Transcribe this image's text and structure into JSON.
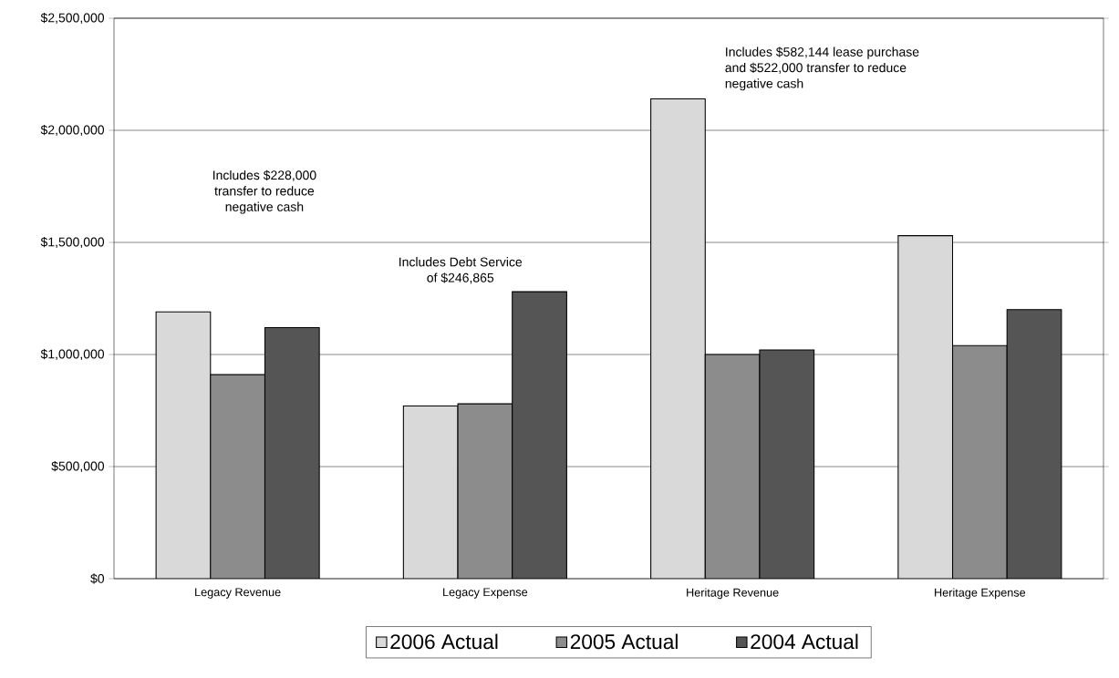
{
  "chart_data": {
    "type": "bar",
    "categories": [
      "Legacy Revenue",
      "Legacy Expense",
      "Heritage Revenue",
      "Heritage Expense"
    ],
    "series": [
      {
        "name": "2006 Actual",
        "color": "#d9d9d9",
        "values": [
          1190000,
          770000,
          2140000,
          1530000
        ]
      },
      {
        "name": "2005 Actual",
        "color": "#8c8c8c",
        "values": [
          910000,
          780000,
          1000000,
          1040000
        ]
      },
      {
        "name": "2004 Actual",
        "color": "#555555",
        "values": [
          1120000,
          1280000,
          1020000,
          1200000
        ]
      }
    ],
    "ylim": [
      0,
      2500000
    ],
    "yticks": [
      {
        "value": 0,
        "label": "$0"
      },
      {
        "value": 500000,
        "label": "$500,000"
      },
      {
        "value": 1000000,
        "label": "$1,000,000"
      },
      {
        "value": 1500000,
        "label": "$1,500,000"
      },
      {
        "value": 2000000,
        "label": "$2,000,000"
      },
      {
        "value": 2500000,
        "label": "$2,500,000"
      }
    ],
    "grid": "y",
    "legend": "bottom",
    "annotations": [
      "Includes $228,000 transfer to reduce negative cash",
      "Includes Debt Service of $246,865",
      "Includes $582,144 lease purchase and $522,000 transfer to reduce negative cash"
    ]
  }
}
